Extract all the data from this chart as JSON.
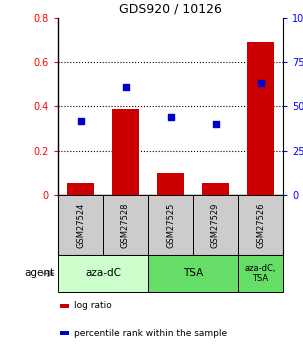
{
  "title": "GDS920 / 10126",
  "samples": [
    "GSM27524",
    "GSM27528",
    "GSM27525",
    "GSM27529",
    "GSM27526"
  ],
  "log_ratio": [
    0.055,
    0.39,
    0.1,
    0.055,
    0.69
  ],
  "percentile_rank_pct": [
    42,
    61,
    44,
    40,
    63
  ],
  "bar_color": "#cc0000",
  "point_color": "#0000cc",
  "ylim_left": [
    0,
    0.8
  ],
  "ylim_right": [
    0,
    100
  ],
  "yticks_left": [
    0,
    0.2,
    0.4,
    0.6,
    0.8
  ],
  "ytick_labels_left": [
    "0",
    "0.2",
    "0.4",
    "0.6",
    "0.8"
  ],
  "yticks_right": [
    0,
    25,
    50,
    75,
    100
  ],
  "ytick_labels_right": [
    "0",
    "25",
    "50",
    "75",
    "100%"
  ],
  "groups": [
    {
      "label": "aza-dC",
      "start": 0,
      "end": 2,
      "color": "#ccffcc"
    },
    {
      "label": "TSA",
      "start": 2,
      "end": 4,
      "color": "#66dd66"
    },
    {
      "label": "aza-dC,\nTSA",
      "start": 4,
      "end": 5,
      "color": "#66dd66"
    }
  ],
  "agent_label": "agent",
  "sample_row_color": "#cccccc",
  "legend_items": [
    {
      "label": "log ratio",
      "color": "#cc0000"
    },
    {
      "label": "percentile rank within the sample",
      "color": "#0000cc"
    }
  ]
}
